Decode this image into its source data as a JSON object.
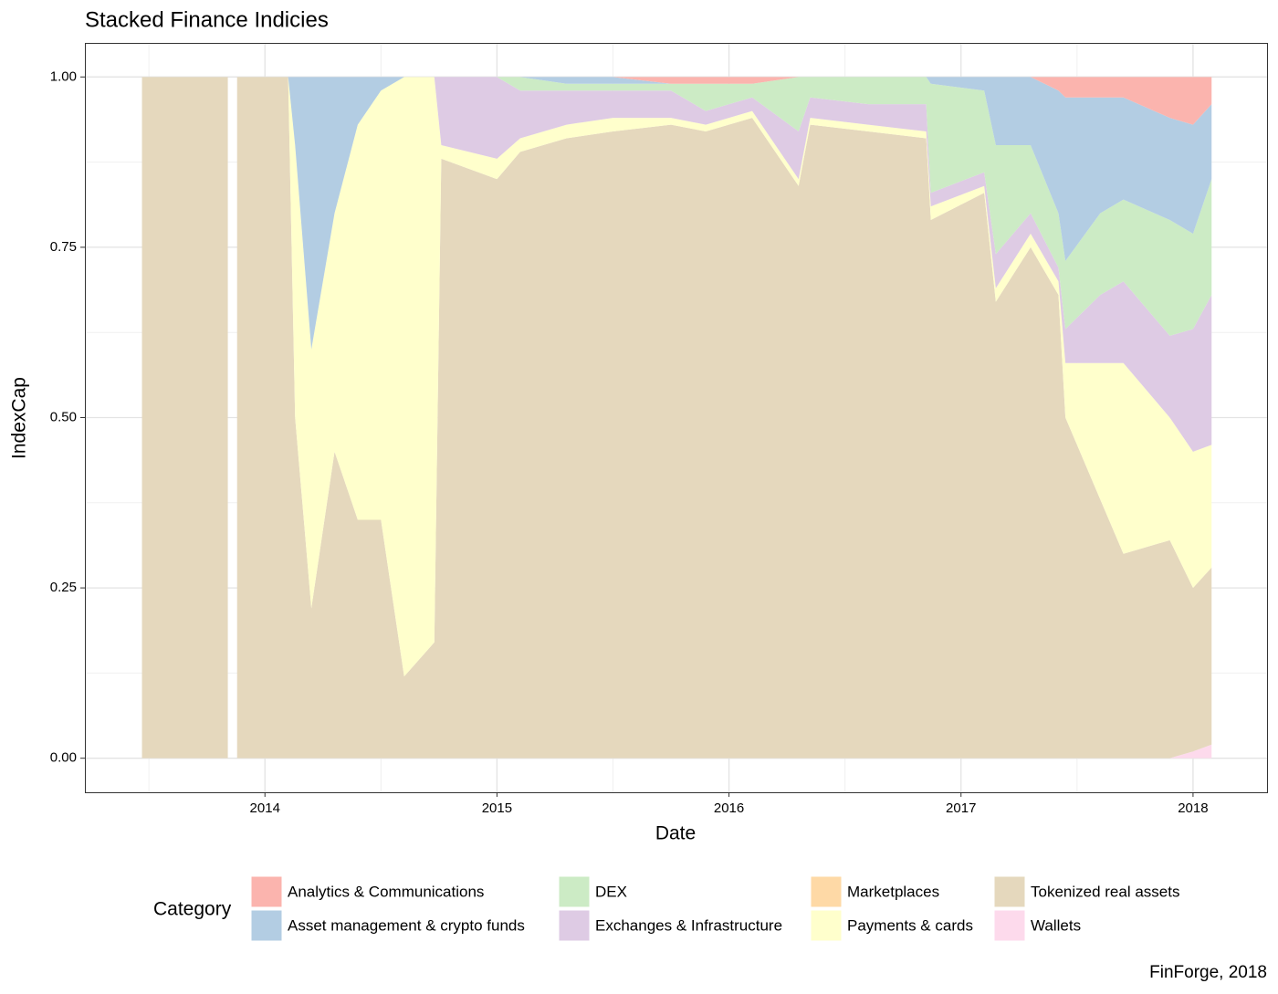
{
  "chart_data": {
    "type": "stacked-area",
    "title": "Stacked Finance Indicies",
    "x_label": "Date",
    "y_label": "IndexCap",
    "legend_title": "Category",
    "caption": "FinForge, 2018",
    "grid": true,
    "xlim": [
      2013.224,
      2018.319
    ],
    "ylim": [
      -0.05,
      1.05
    ],
    "xticks": [
      2014,
      2015,
      2016,
      2017,
      2018
    ],
    "yticks": [
      {
        "value": 0,
        "label": "0.00"
      },
      {
        "value": 0.25,
        "label": "0.25"
      },
      {
        "value": 0.5,
        "label": "0.50"
      },
      {
        "value": 0.75,
        "label": "0.75"
      },
      {
        "value": 1,
        "label": "1.00"
      }
    ],
    "x": [
      2013.47,
      2013.7,
      2013.84,
      2013.86,
      2013.88,
      2014.1,
      2014.13,
      2014.2,
      2014.3,
      2014.4,
      2014.5,
      2014.6,
      2014.73,
      2014.76,
      2015.0,
      2015.1,
      2015.3,
      2015.5,
      2015.75,
      2015.9,
      2016.1,
      2016.3,
      2016.35,
      2016.6,
      2016.85,
      2016.87,
      2017.1,
      2017.15,
      2017.3,
      2017.42,
      2017.45,
      2017.6,
      2017.7,
      2017.9,
      2018.0,
      2018.08
    ],
    "series": [
      {
        "name": "Analytics & Communications",
        "color": "#FBB4AE",
        "values": [
          0,
          0,
          0,
          null,
          0,
          0,
          0,
          0,
          0,
          0,
          0,
          0,
          0,
          0,
          0,
          0,
          0,
          0,
          0.01,
          0.01,
          0.01,
          0,
          0,
          0,
          0,
          0,
          0,
          0,
          0,
          0.02,
          0.03,
          0.03,
          0.03,
          0.06,
          0.07,
          0.04
        ]
      },
      {
        "name": "Asset management & crypto funds",
        "color": "#B3CDE3",
        "values": [
          0,
          0,
          0,
          null,
          0,
          0,
          0.1,
          0.4,
          0.2,
          0.07,
          0.02,
          0,
          0,
          0,
          0,
          0,
          0.01,
          0.01,
          0,
          0,
          0,
          0,
          0,
          0,
          0,
          0.01,
          0.02,
          0.1,
          0.1,
          0.18,
          0.24,
          0.17,
          0.15,
          0.15,
          0.16,
          0.11
        ]
      },
      {
        "name": "DEX",
        "color": "#CCEBC5",
        "values": [
          0,
          0,
          0,
          null,
          0,
          0,
          0,
          0,
          0,
          0,
          0,
          0,
          0,
          0,
          0,
          0.02,
          0.01,
          0.01,
          0.01,
          0.04,
          0.02,
          0.08,
          0.03,
          0.04,
          0.04,
          0.16,
          0.12,
          0.16,
          0.1,
          0.08,
          0.1,
          0.12,
          0.12,
          0.17,
          0.14,
          0.17
        ]
      },
      {
        "name": "Exchanges & Infrastructure",
        "color": "#DECBE4",
        "values": [
          0,
          0,
          0,
          null,
          0,
          0,
          0,
          0,
          0,
          0,
          0,
          0,
          0,
          0.1,
          0.12,
          0.07,
          0.05,
          0.04,
          0.04,
          0.02,
          0.02,
          0.07,
          0.03,
          0.03,
          0.04,
          0.02,
          0.02,
          0.05,
          0.03,
          0.02,
          0.05,
          0.1,
          0.12,
          0.12,
          0.18,
          0.22
        ]
      },
      {
        "name": "Marketplaces",
        "color": "#FED9A6",
        "values": [
          0,
          0,
          0,
          null,
          0,
          0,
          0,
          0,
          0,
          0,
          0,
          0,
          0,
          0,
          0,
          0,
          0,
          0,
          0,
          0,
          0,
          0,
          0,
          0,
          0,
          0,
          0,
          0,
          0,
          0,
          0,
          0,
          0,
          0,
          0,
          0
        ]
      },
      {
        "name": "Payments & cards",
        "color": "#FFFFCC",
        "values": [
          0,
          0,
          0,
          null,
          0,
          0,
          0.4,
          0.38,
          0.35,
          0.58,
          0.63,
          0.88,
          0.83,
          0.02,
          0.03,
          0.02,
          0.02,
          0.02,
          0.01,
          0.01,
          0.01,
          0.01,
          0.01,
          0.01,
          0.01,
          0.02,
          0.01,
          0.02,
          0.02,
          0.02,
          0.08,
          0.2,
          0.28,
          0.18,
          0.2,
          0.18
        ]
      },
      {
        "name": "Tokenized real assets",
        "color": "#E5D8BD",
        "values": [
          1,
          1,
          1,
          null,
          1,
          1,
          0.5,
          0.22,
          0.45,
          0.35,
          0.35,
          0.12,
          0.17,
          0.88,
          0.85,
          0.89,
          0.91,
          0.92,
          0.93,
          0.92,
          0.94,
          0.84,
          0.93,
          0.92,
          0.91,
          0.79,
          0.83,
          0.67,
          0.75,
          0.68,
          0.5,
          0.38,
          0.3,
          0.32,
          0.24,
          0.26
        ]
      },
      {
        "name": "Wallets",
        "color": "#FDDAEC",
        "values": [
          0,
          0,
          0,
          null,
          0,
          0,
          0,
          0,
          0,
          0,
          0,
          0,
          0,
          0,
          0,
          0,
          0,
          0,
          0,
          0,
          0,
          0,
          0,
          0,
          0,
          0,
          0,
          0,
          0,
          0,
          0,
          0,
          0,
          0,
          0.01,
          0.02
        ]
      }
    ]
  }
}
